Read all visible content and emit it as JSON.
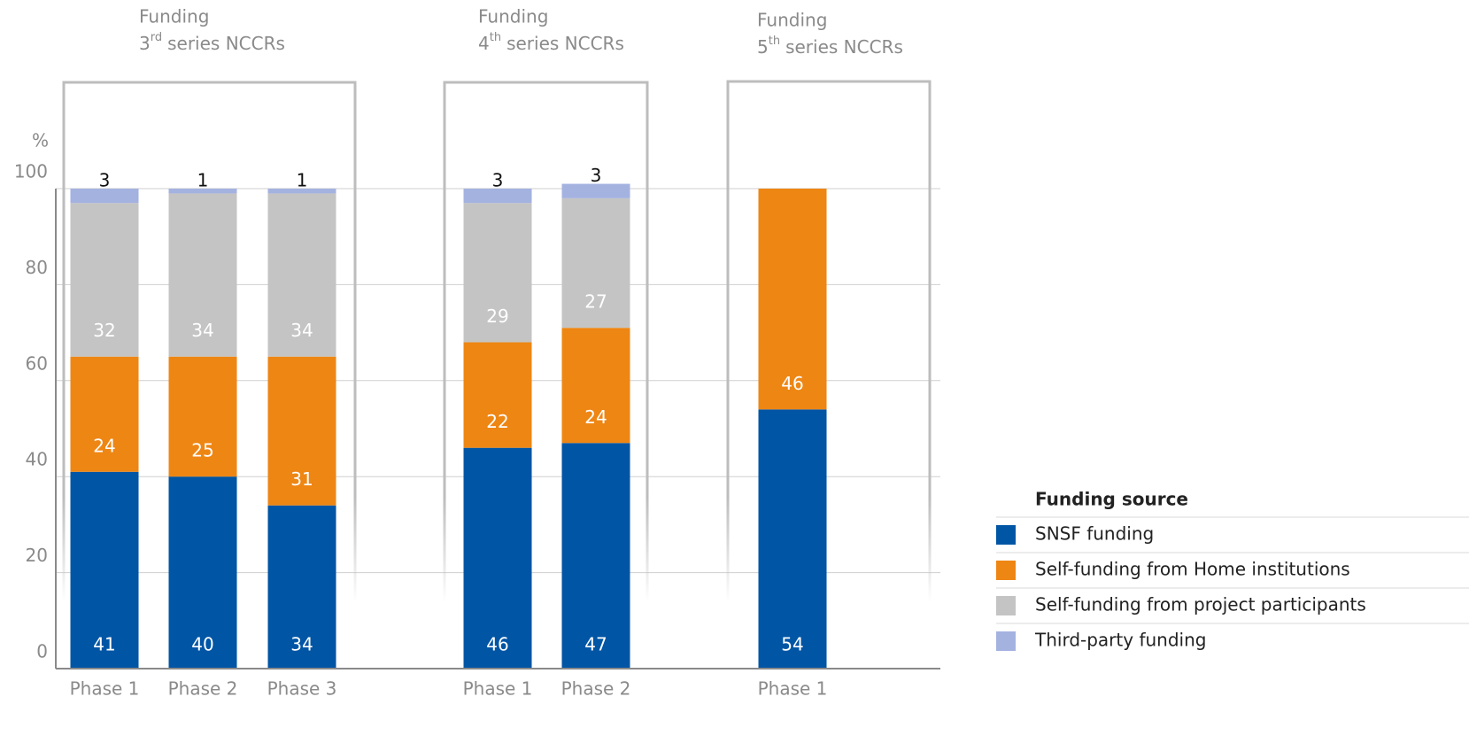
{
  "chart_data": {
    "type": "stacked-bar",
    "y_label": "%",
    "ylim": [
      0,
      100
    ],
    "yticks": [
      0,
      20,
      40,
      60,
      80,
      100
    ],
    "grid": true,
    "groups": [
      {
        "title": "Funding",
        "ordinal": "3",
        "suffix": "rd",
        "rest": "series NCCRs",
        "categories": [
          "Phase 1",
          "Phase 2",
          "Phase 3"
        ]
      },
      {
        "title": "Funding",
        "ordinal": "4",
        "suffix": "th",
        "rest": "series NCCRs",
        "categories": [
          "Phase 1",
          "Phase 2"
        ]
      },
      {
        "title": "Funding",
        "ordinal": "5",
        "suffix": "th",
        "rest": "series NCCRs",
        "categories": [
          "Phase 1"
        ]
      }
    ],
    "legend_title": "Funding source",
    "legend": "right",
    "series": [
      {
        "name": "SNSF funding",
        "color": "#0055a5",
        "values": [
          41,
          40,
          34,
          46,
          47,
          54
        ]
      },
      {
        "name": "Self-funding from Home institutions",
        "color": "#ee8614",
        "values": [
          24,
          25,
          31,
          22,
          24,
          46
        ]
      },
      {
        "name": "Self-funding from project participants",
        "color": "#c4c4c4",
        "values": [
          32,
          34,
          34,
          29,
          27,
          null
        ]
      },
      {
        "name": "Third-party funding",
        "color": "#a4b2e0",
        "values": [
          3,
          1,
          1,
          3,
          3,
          null
        ]
      }
    ]
  }
}
